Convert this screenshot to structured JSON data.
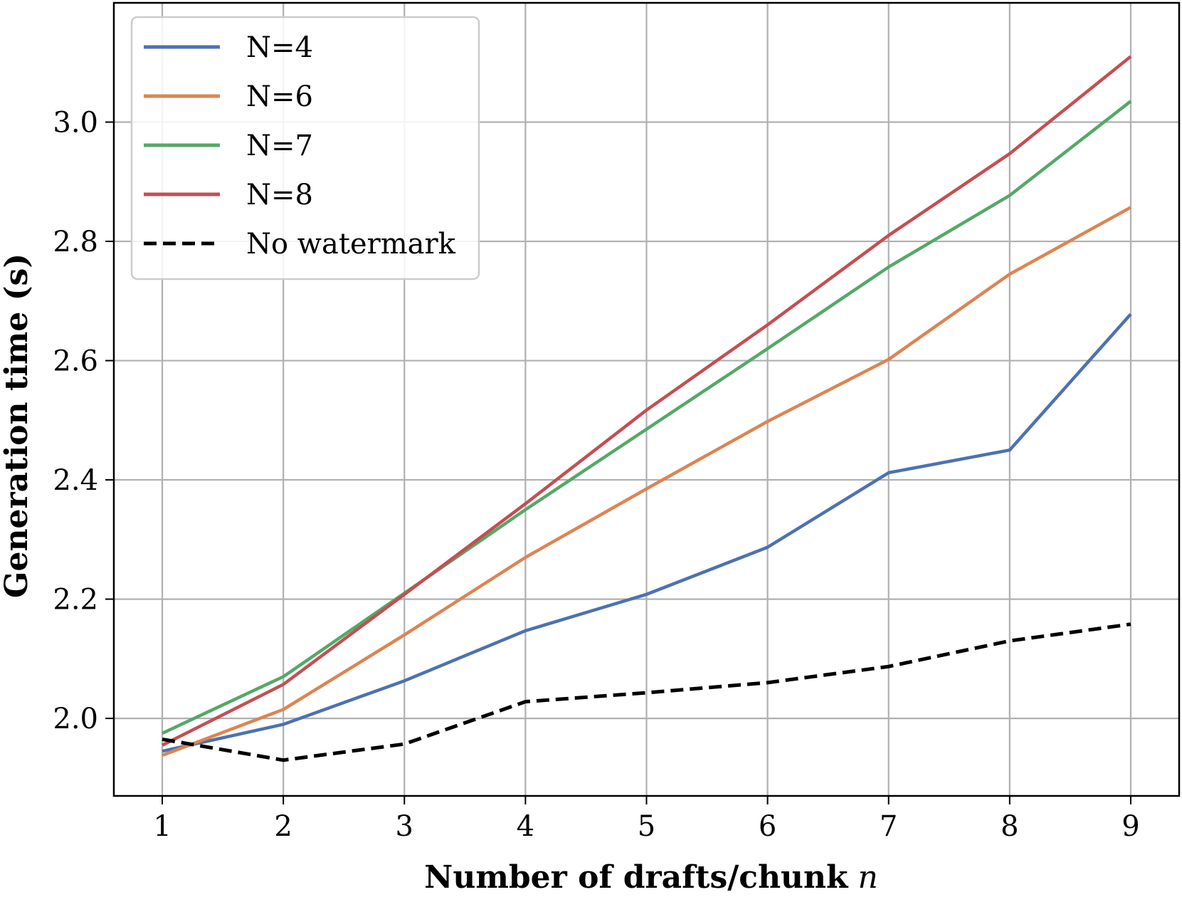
{
  "chart_data": {
    "type": "line",
    "title": "",
    "xlabel": "Number of drafts/chunk",
    "xlabel_var": "n",
    "ylabel": "Generation time (s)",
    "x": [
      1,
      2,
      3,
      4,
      5,
      6,
      7,
      8,
      9
    ],
    "xticks": [
      "1",
      "2",
      "3",
      "4",
      "5",
      "6",
      "7",
      "8",
      "9"
    ],
    "yticks": [
      "2.0",
      "2.2",
      "2.4",
      "2.6",
      "2.8",
      "3.0"
    ],
    "xlim": [
      0.6,
      9.4
    ],
    "ylim": [
      1.87,
      3.2
    ],
    "grid": true,
    "legend_position": "upper-left",
    "series": [
      {
        "name": "N=4",
        "color": "#4c72b0",
        "style": "solid",
        "values": [
          1.945,
          1.99,
          2.063,
          2.147,
          2.208,
          2.287,
          2.412,
          2.45,
          2.678
        ]
      },
      {
        "name": "N=6",
        "color": "#dd8452",
        "style": "solid",
        "values": [
          1.938,
          2.015,
          2.14,
          2.27,
          2.385,
          2.498,
          2.602,
          2.745,
          2.857
        ]
      },
      {
        "name": "N=7",
        "color": "#55a868",
        "style": "solid",
        "values": [
          1.975,
          2.07,
          2.21,
          2.35,
          2.485,
          2.62,
          2.757,
          2.877,
          3.035
        ]
      },
      {
        "name": "N=8",
        "color": "#c44e52",
        "style": "solid",
        "values": [
          1.955,
          2.057,
          2.208,
          2.36,
          2.517,
          2.66,
          2.81,
          2.947,
          3.11
        ]
      },
      {
        "name": "No watermark",
        "color": "#000000",
        "style": "dashed",
        "values": [
          1.965,
          1.93,
          1.957,
          2.028,
          2.043,
          2.06,
          2.087,
          2.13,
          2.158
        ]
      }
    ]
  }
}
